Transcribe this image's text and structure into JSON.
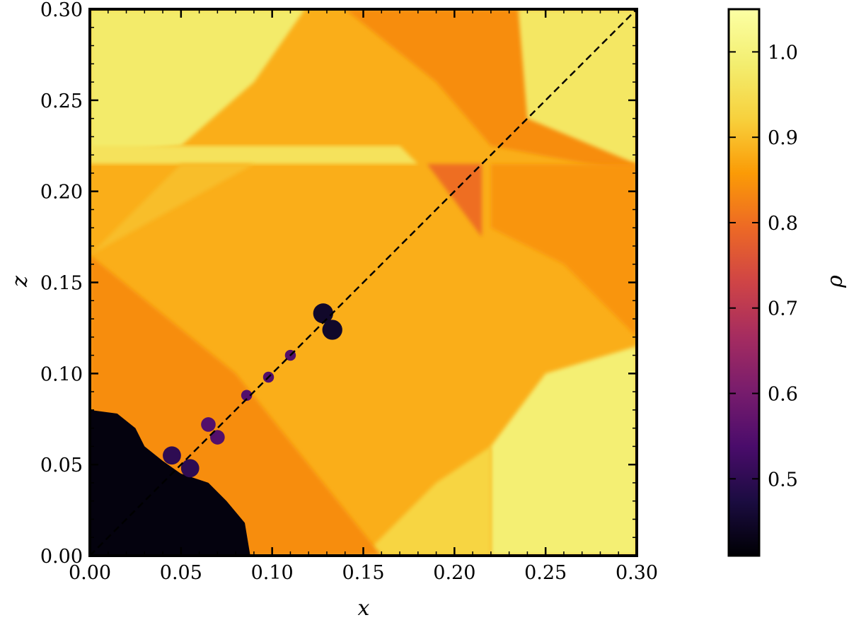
{
  "chart_data": {
    "type": "heatmap",
    "title": "",
    "xlabel": "x",
    "ylabel": "z",
    "xlim": [
      0.0,
      0.3
    ],
    "ylim": [
      0.0,
      0.3
    ],
    "x_ticks": [
      "0.00",
      "0.05",
      "0.10",
      "0.15",
      "0.20",
      "0.25",
      "0.30"
    ],
    "y_ticks": [
      "0.00",
      "0.05",
      "0.10",
      "0.15",
      "0.20",
      "0.25",
      "0.30"
    ],
    "x_tick_values": [
      0.0,
      0.05,
      0.1,
      0.15,
      0.2,
      0.25,
      0.3
    ],
    "y_tick_values": [
      0.0,
      0.05,
      0.1,
      0.15,
      0.2,
      0.25,
      0.3
    ],
    "colormap": "inferno",
    "colorbar": {
      "label": "ρ",
      "range": [
        0.41,
        1.05
      ],
      "ticks": [
        "0.5",
        "0.6",
        "0.7",
        "0.8",
        "0.9",
        "1.0"
      ],
      "tick_values": [
        0.5,
        0.6,
        0.7,
        0.8,
        0.9,
        1.0
      ]
    },
    "diagonal_line": {
      "style": "dashed",
      "from": [
        0.0,
        0.0
      ],
      "to": [
        0.3,
        0.3
      ],
      "color": "#000000"
    },
    "background_density": 0.88,
    "regions": [
      {
        "name": "top-left-high",
        "density": 0.98,
        "polygon": [
          [
            0.0,
            0.22
          ],
          [
            0.0,
            0.3
          ],
          [
            0.118,
            0.3
          ],
          [
            0.09,
            0.26
          ],
          [
            0.05,
            0.225
          ]
        ]
      },
      {
        "name": "top-band-high",
        "density": 0.96,
        "polygon": [
          [
            0.0,
            0.215
          ],
          [
            0.18,
            0.215
          ],
          [
            0.17,
            0.225
          ],
          [
            0.0,
            0.225
          ]
        ]
      },
      {
        "name": "upper-right-low",
        "density": 0.84,
        "polygon": [
          [
            0.14,
            0.3
          ],
          [
            0.3,
            0.3
          ],
          [
            0.3,
            0.21
          ],
          [
            0.22,
            0.225
          ],
          [
            0.19,
            0.26
          ]
        ]
      },
      {
        "name": "dark-triangle",
        "density": 0.8,
        "polygon": [
          [
            0.185,
            0.215
          ],
          [
            0.215,
            0.215
          ],
          [
            0.215,
            0.175
          ]
        ]
      },
      {
        "name": "right-top-high",
        "density": 0.97,
        "polygon": [
          [
            0.235,
            0.3
          ],
          [
            0.3,
            0.3
          ],
          [
            0.3,
            0.215
          ],
          [
            0.24,
            0.24
          ]
        ]
      },
      {
        "name": "right-mid-low",
        "density": 0.85,
        "polygon": [
          [
            0.22,
            0.215
          ],
          [
            0.3,
            0.215
          ],
          [
            0.3,
            0.12
          ],
          [
            0.26,
            0.16
          ],
          [
            0.22,
            0.18
          ]
        ]
      },
      {
        "name": "bottom-right-high",
        "density": 0.99,
        "polygon": [
          [
            0.22,
            0.0
          ],
          [
            0.3,
            0.0
          ],
          [
            0.3,
            0.115
          ],
          [
            0.25,
            0.1
          ],
          [
            0.22,
            0.06
          ]
        ]
      },
      {
        "name": "bottom-right-mid",
        "density": 0.93,
        "polygon": [
          [
            0.15,
            0.0
          ],
          [
            0.22,
            0.0
          ],
          [
            0.22,
            0.06
          ],
          [
            0.19,
            0.04
          ]
        ]
      },
      {
        "name": "left-low-band",
        "density": 0.84,
        "polygon": [
          [
            0.0,
            0.0
          ],
          [
            0.0,
            0.165
          ],
          [
            0.08,
            0.1
          ],
          [
            0.16,
            0.0
          ]
        ]
      },
      {
        "name": "central-high-wedge",
        "density": 0.9,
        "polygon": [
          [
            0.0,
            0.165
          ],
          [
            0.09,
            0.215
          ],
          [
            0.05,
            0.215
          ]
        ]
      }
    ],
    "bubble": {
      "density": 0.42,
      "points": [
        [
          0.0,
          0.08
        ],
        [
          0.015,
          0.078
        ],
        [
          0.025,
          0.07
        ],
        [
          0.03,
          0.06
        ],
        [
          0.04,
          0.052
        ],
        [
          0.05,
          0.045
        ],
        [
          0.065,
          0.04
        ],
        [
          0.075,
          0.03
        ],
        [
          0.085,
          0.018
        ],
        [
          0.088,
          0.0
        ],
        [
          0.0,
          0.0
        ]
      ]
    },
    "vortices": [
      {
        "x": 0.128,
        "y": 0.133,
        "r": 0.0055,
        "density": 0.45
      },
      {
        "x": 0.133,
        "y": 0.124,
        "r": 0.0055,
        "density": 0.45
      },
      {
        "x": 0.11,
        "y": 0.11,
        "r": 0.003,
        "density": 0.55
      },
      {
        "x": 0.098,
        "y": 0.098,
        "r": 0.003,
        "density": 0.55
      },
      {
        "x": 0.086,
        "y": 0.088,
        "r": 0.003,
        "density": 0.55
      },
      {
        "x": 0.065,
        "y": 0.072,
        "r": 0.004,
        "density": 0.55
      },
      {
        "x": 0.07,
        "y": 0.065,
        "r": 0.004,
        "density": 0.55
      },
      {
        "x": 0.045,
        "y": 0.055,
        "r": 0.005,
        "density": 0.5
      },
      {
        "x": 0.055,
        "y": 0.048,
        "r": 0.005,
        "density": 0.5
      }
    ]
  }
}
